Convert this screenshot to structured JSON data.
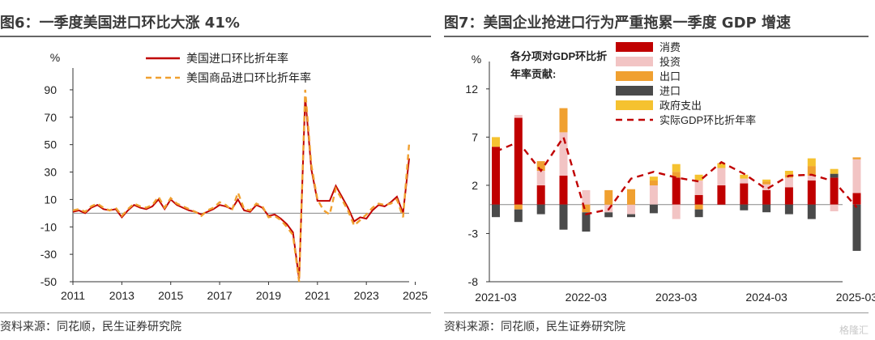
{
  "left": {
    "title": "图6：一季度美国进口环比大涨 41%",
    "source": "资料来源：同花顺，民生证券研究院"
  },
  "right": {
    "title": "图7：美国企业抢进口行为严重拖累一季度 GDP 增速",
    "source": "资料来源：同花顺，民生证券研究院"
  },
  "watermark": "格隆汇",
  "chart_data": [
    {
      "type": "line",
      "unit": "%",
      "ylim": [
        -50,
        100
      ],
      "yticks": [
        90,
        70,
        50,
        30,
        10,
        -10,
        -30,
        -50
      ],
      "xticks": [
        "2011",
        "2013",
        "2015",
        "2017",
        "2019",
        "2021",
        "2023",
        "2025"
      ],
      "xrange": [
        "2011-Q1",
        "2025-Q1"
      ],
      "legend_position": "top-center",
      "series": [
        {
          "name": "美国进口环比折年率",
          "color": "#c00000",
          "style": "solid",
          "values": [
            1,
            2,
            0,
            4,
            6,
            3,
            2,
            3,
            -3,
            2,
            6,
            4,
            3,
            5,
            10,
            3,
            10,
            6,
            4,
            2,
            1,
            -1,
            1,
            3,
            6,
            5,
            3,
            10,
            2,
            1,
            6,
            4,
            -2,
            -1,
            -4,
            -8,
            -14,
            -48,
            85,
            32,
            9,
            9,
            9,
            20,
            12,
            4,
            -6,
            -3,
            -4,
            2,
            6,
            5,
            8,
            12,
            0,
            40
          ]
        },
        {
          "name": "美国商品进口环比折年率",
          "color": "#f0a030",
          "style": "dashed",
          "values": [
            2,
            3,
            1,
            5,
            7,
            4,
            2,
            4,
            -2,
            3,
            7,
            5,
            4,
            6,
            12,
            4,
            11,
            7,
            5,
            3,
            1,
            -2,
            2,
            4,
            8,
            6,
            2,
            15,
            3,
            2,
            7,
            5,
            -3,
            -2,
            -5,
            -10,
            -16,
            -50,
            90,
            35,
            10,
            2,
            -1,
            18,
            10,
            2,
            -9,
            -5,
            -1,
            4,
            7,
            6,
            7,
            10,
            -3,
            51
          ]
        }
      ]
    },
    {
      "type": "bar",
      "stacked": true,
      "unit": "%",
      "ylim": [
        -8,
        14
      ],
      "yticks": [
        12,
        7,
        2,
        -3,
        -8
      ],
      "xticks": [
        "2021-03",
        "2022-03",
        "2023-03",
        "2024-03",
        "2025-03"
      ],
      "annotation": "各分项对GDP环比折年率贡献:",
      "legend_position": "top-right",
      "categories": [
        "2021-03",
        "2021-06",
        "2021-09",
        "2021-12",
        "2022-03",
        "2022-06",
        "2022-09",
        "2022-12",
        "2023-03",
        "2023-06",
        "2023-09",
        "2023-12",
        "2024-03",
        "2024-06",
        "2024-09",
        "2024-12",
        "2025-03"
      ],
      "series": [
        {
          "name": "消费",
          "color": "#c00000",
          "values": [
            6.0,
            9.0,
            2.0,
            3.0,
            0.0,
            0.0,
            0.0,
            0.0,
            2.8,
            1.0,
            2.0,
            2.2,
            1.5,
            1.8,
            2.5,
            2.8,
            1.2
          ]
        },
        {
          "name": "投资",
          "color": "#f2c4c4",
          "values": [
            0.0,
            0.3,
            1.5,
            4.5,
            1.5,
            -0.8,
            -1.0,
            2.0,
            -1.5,
            1.5,
            1.8,
            0.5,
            0.6,
            1.0,
            0.5,
            -0.7,
            3.5
          ]
        },
        {
          "name": "出口",
          "color": "#f0a030",
          "values": [
            0.0,
            -0.5,
            1.0,
            2.5,
            -0.8,
            1.5,
            1.6,
            0.5,
            0.6,
            -0.5,
            0.0,
            0.0,
            0.3,
            0.3,
            1.0,
            0.0,
            0.2
          ]
        },
        {
          "name": "进口",
          "color": "#4a4a4a",
          "values": [
            -1.3,
            -1.3,
            -1.0,
            -2.6,
            -2.0,
            -0.5,
            -0.3,
            -0.9,
            0.0,
            -0.8,
            0.0,
            -0.6,
            -0.8,
            -1.0,
            -1.5,
            0.4,
            -4.8
          ]
        },
        {
          "name": "政府支出",
          "color": "#f5c230",
          "values": [
            1.0,
            0.0,
            0.0,
            0.0,
            0.0,
            0.0,
            0.0,
            0.4,
            0.8,
            0.6,
            0.5,
            0.4,
            0.2,
            0.4,
            0.8,
            0.5,
            0.0
          ]
        }
      ],
      "line": {
        "name": "实际GDP环比折年率",
        "color": "#c00000",
        "style": "dashed",
        "values": [
          5.5,
          6.5,
          3.5,
          7.0,
          -1.0,
          -0.5,
          2.7,
          3.4,
          2.8,
          2.4,
          4.4,
          3.2,
          1.6,
          3.0,
          3.1,
          2.4,
          -0.3
        ]
      }
    }
  ]
}
